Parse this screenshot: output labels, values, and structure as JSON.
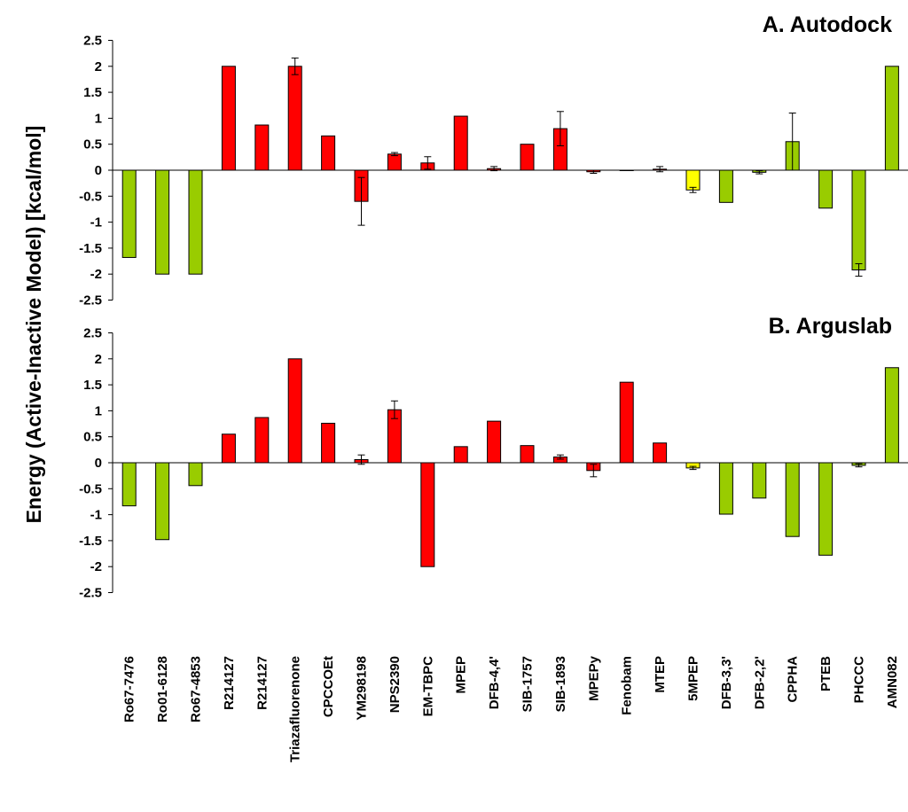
{
  "chart_data": {
    "type": "bar",
    "ylabel": "Energy (Active-Inactive Model) [kcal/mol]",
    "categories": [
      "Ro67-7476",
      "Ro01-6128",
      "Ro67-4853",
      "R214127",
      "R214127",
      "Triazafluorenone",
      "CPCCOEt",
      "YM298198",
      "NPS2390",
      "EM-TBPC",
      "MPEP",
      "DFB-4,4'",
      "SIB-1757",
      "SIB-1893",
      "MPEPy",
      "Fenobam",
      "MTEP",
      "5MPEP",
      "DFB-3,3'",
      "DFB-2,2'",
      "CPPHA",
      "PTEB",
      "PHCCC",
      "AMN082"
    ],
    "bar_colors": [
      "#99cc00",
      "#99cc00",
      "#99cc00",
      "#ff0000",
      "#ff0000",
      "#ff0000",
      "#ff0000",
      "#ff0000",
      "#ff0000",
      "#ff0000",
      "#ff0000",
      "#ff0000",
      "#ff0000",
      "#ff0000",
      "#ff0000",
      "#ff0000",
      "#ff0000",
      "#ffff00",
      "#99cc00",
      "#99cc00",
      "#99cc00",
      "#99cc00",
      "#99cc00",
      "#99cc00"
    ],
    "panels": [
      {
        "title": "A. Autodock",
        "ylim": [
          -2.5,
          2.5
        ],
        "yticks": [
          "-2.5",
          "-2",
          "-1.5",
          "-1",
          "-0.5",
          "0",
          "0.5",
          "1",
          "1.5",
          "2",
          "2.5"
        ],
        "values": [
          -1.68,
          -2.0,
          -2.0,
          2.0,
          0.87,
          2.0,
          0.66,
          -0.6,
          0.31,
          0.14,
          1.04,
          0.03,
          0.5,
          0.8,
          -0.03,
          0.0,
          0.02,
          -0.38,
          -0.62,
          -0.04,
          0.55,
          -0.73,
          -1.92,
          2.0
        ],
        "errors": [
          0,
          0,
          0,
          0,
          0,
          0.16,
          0,
          0.46,
          0.03,
          0.12,
          0,
          0.04,
          0,
          0.33,
          0.03,
          0,
          0.05,
          0.05,
          0,
          0.03,
          0.55,
          0,
          0.12,
          0
        ]
      },
      {
        "title": "B. Arguslab",
        "ylim": [
          -2.5,
          2.5
        ],
        "yticks": [
          "-2.5",
          "-2",
          "-1.5",
          "-1",
          "-0.5",
          "0",
          "0.5",
          "1",
          "1.5",
          "2",
          "2.5"
        ],
        "values": [
          -0.83,
          -1.48,
          -0.44,
          0.55,
          0.87,
          2.0,
          0.76,
          0.06,
          1.02,
          -2.0,
          0.31,
          0.8,
          0.33,
          0.11,
          -0.15,
          1.55,
          0.38,
          -0.1,
          -0.99,
          -0.68,
          -1.42,
          -1.78,
          -0.05,
          1.83
        ],
        "errors": [
          0,
          0,
          0,
          0,
          0,
          0,
          0,
          0.09,
          0.17,
          0,
          0,
          0,
          0,
          0.04,
          0.12,
          0,
          0,
          0.03,
          0,
          0,
          0,
          0,
          0.03,
          0
        ]
      }
    ]
  }
}
